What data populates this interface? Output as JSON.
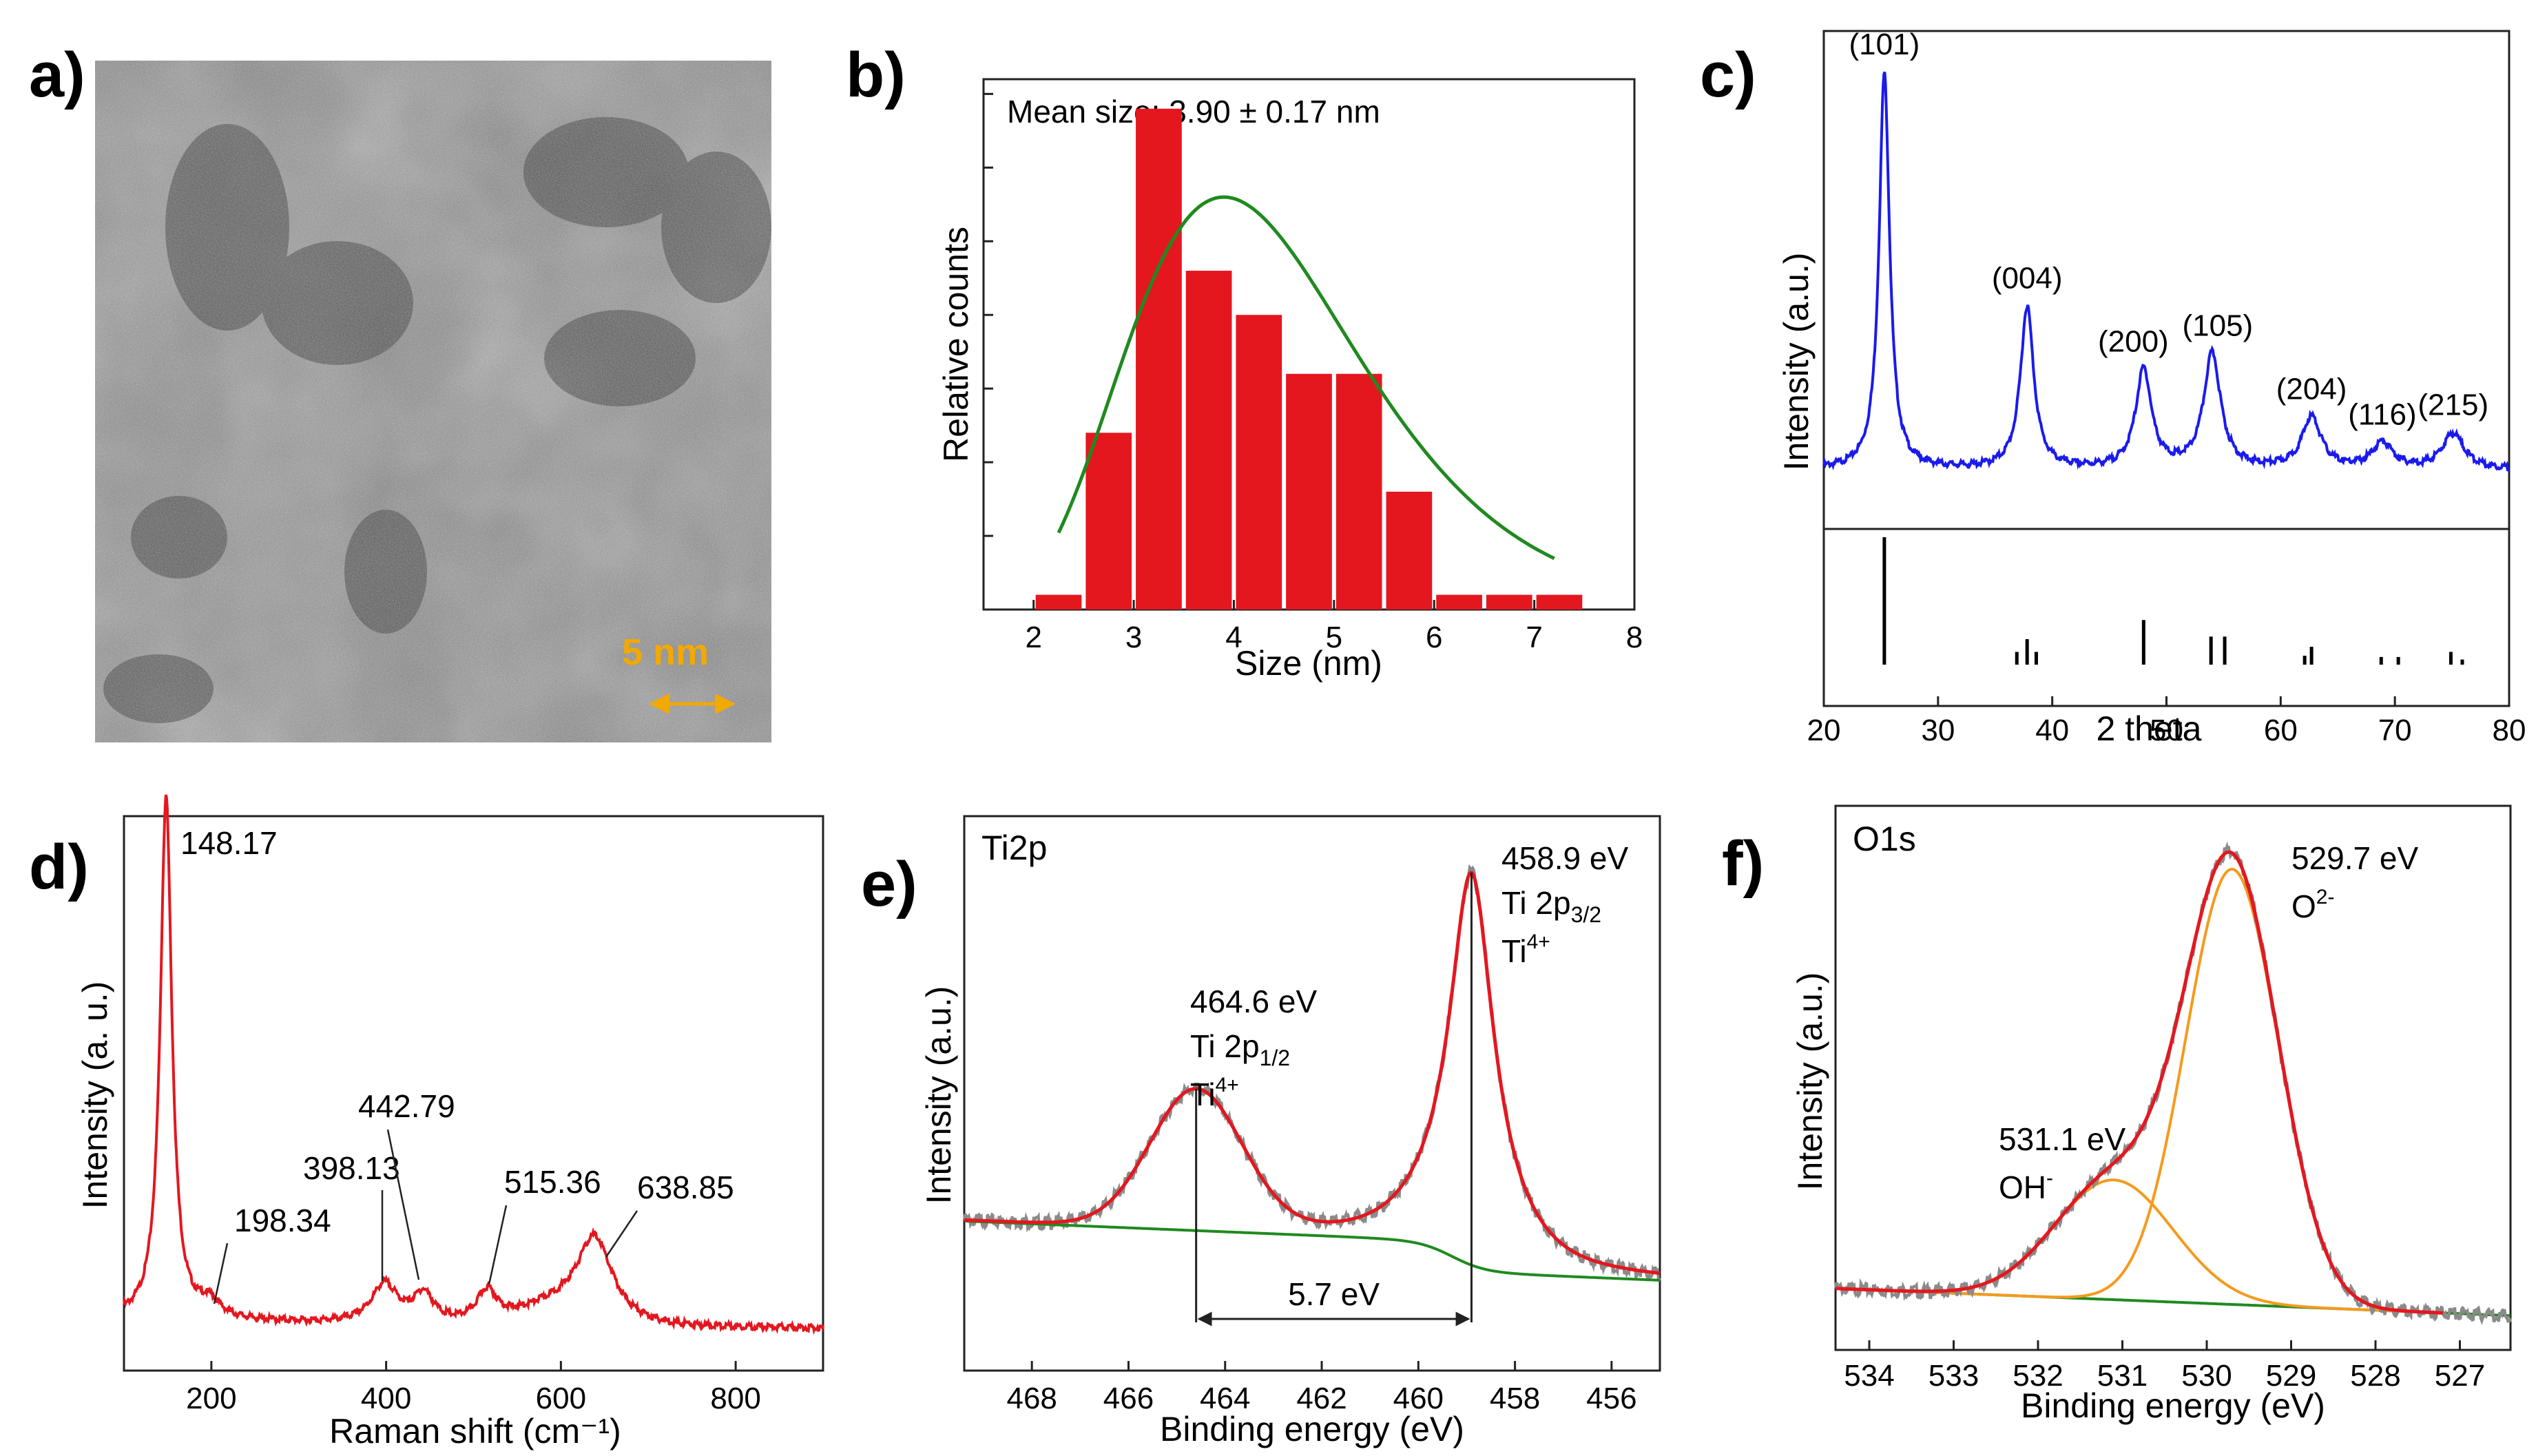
{
  "panel_labels": [
    "a)",
    "b)",
    "c)",
    "d)",
    "e)",
    "f)"
  ],
  "colors": {
    "red": "#e4171f",
    "blue": "#1a1aee",
    "green": "#1f8a1f",
    "orange": "#f59a1d",
    "gray": "#8a8a8a",
    "scale": "#f2a900"
  },
  "tem": {
    "scale_label": "5 nm"
  },
  "chart_data": [
    {
      "panel": "b",
      "type": "bar",
      "annotation": "Mean size: 3.90 ± 0.17 nm",
      "xlabel": "Size (nm)",
      "ylabel": "Relative counts",
      "xlim": [
        1.5,
        8
      ],
      "xticks": [
        2,
        3,
        4,
        5,
        6,
        7,
        8
      ],
      "ylim": [
        0,
        36
      ],
      "bins": [
        2.25,
        2.75,
        3.25,
        3.75,
        4.25,
        4.75,
        5.25,
        5.75,
        6.25,
        6.75,
        7.25
      ],
      "values": [
        1,
        12,
        34,
        23,
        20,
        16,
        16,
        8,
        1,
        1,
        1
      ],
      "bar_color": "#e4171f",
      "fit": {
        "type": "lognormal",
        "color": "#1f8a1f",
        "peak_x": 3.9,
        "peak_y": 28
      }
    },
    {
      "panel": "c",
      "type": "line",
      "xlabel": "2 theta",
      "ylabel": "Intensity (a.u.)",
      "xlim": [
        20,
        80
      ],
      "xticks": [
        20,
        30,
        40,
        50,
        60,
        70,
        80
      ],
      "peaks": [
        {
          "x": 25.3,
          "h": 1.0,
          "label": "(101)"
        },
        {
          "x": 37.8,
          "h": 0.41,
          "label": "(004)"
        },
        {
          "x": 48.0,
          "h": 0.25,
          "label": "(200)"
        },
        {
          "x": 54.0,
          "h": 0.29,
          "label": "(105)"
        },
        {
          "x": 62.7,
          "h": 0.13,
          "label": "(204)"
        },
        {
          "x": 68.9,
          "h": 0.065,
          "label": "(116)"
        },
        {
          "x": 75.1,
          "h": 0.09,
          "label": "(215)"
        }
      ],
      "reference_lines": [
        {
          "x": 25.3,
          "h": 1.0
        },
        {
          "x": 36.9,
          "h": 0.1
        },
        {
          "x": 37.8,
          "h": 0.2
        },
        {
          "x": 38.6,
          "h": 0.1
        },
        {
          "x": 48.0,
          "h": 0.35
        },
        {
          "x": 53.9,
          "h": 0.22
        },
        {
          "x": 55.1,
          "h": 0.22
        },
        {
          "x": 62.1,
          "h": 0.07
        },
        {
          "x": 62.7,
          "h": 0.14
        },
        {
          "x": 68.8,
          "h": 0.06
        },
        {
          "x": 70.3,
          "h": 0.06
        },
        {
          "x": 74.9,
          "h": 0.1
        },
        {
          "x": 75.9,
          "h": 0.04
        }
      ],
      "line_color": "#1a1aee"
    },
    {
      "panel": "d",
      "type": "line",
      "xlabel": "Raman shift (cm⁻¹)",
      "ylabel": "Intensity (a. u.)",
      "xlim": [
        100,
        900
      ],
      "xticks": [
        200,
        400,
        600,
        800
      ],
      "peaks": [
        {
          "x": 148.17,
          "label": "148.17"
        },
        {
          "x": 198.34,
          "label": "198.34"
        },
        {
          "x": 398.13,
          "label": "398.13"
        },
        {
          "x": 442.79,
          "label": "442.79"
        },
        {
          "x": 515.36,
          "label": "515.36"
        },
        {
          "x": 638.85,
          "label": "638.85"
        }
      ],
      "line_color": "#e4171f"
    },
    {
      "panel": "e",
      "type": "line",
      "title": "Ti2p",
      "xlabel": "Binding energy (eV)",
      "ylabel": "Intensity (a.u.)",
      "xlim": [
        469.4,
        455.0
      ],
      "x_reversed": true,
      "xticks": [
        468,
        466,
        464,
        462,
        460,
        458,
        456
      ],
      "peaks": [
        {
          "x": 464.6,
          "energy": "464.6 eV",
          "orbital": "Ti 2p",
          "sub": "1/2",
          "ion": "Ti",
          "charge": "4+"
        },
        {
          "x": 458.9,
          "energy": "458.9 eV",
          "orbital": "Ti 2p",
          "sub": "3/2",
          "ion": "Ti",
          "charge": "4+"
        }
      ],
      "splitting": "5.7 eV",
      "series": [
        {
          "name": "",
          "color": "#8a8a8a"
        },
        {
          "name": "",
          "color": "#e4171f"
        },
        {
          "name": "",
          "color": "#1f8a1f"
        }
      ]
    },
    {
      "panel": "f",
      "type": "line",
      "title": "O1s",
      "xlabel": "Binding energy (eV)",
      "ylabel": "Intensity (a.u.)",
      "xlim": [
        534.4,
        526.4
      ],
      "x_reversed": true,
      "xticks": [
        534,
        533,
        532,
        531,
        530,
        529,
        528,
        527
      ],
      "peaks": [
        {
          "x": 531.1,
          "energy": "531.1 eV",
          "species": "OH",
          "charge": "-"
        },
        {
          "x": 529.7,
          "energy": "529.7 eV",
          "species": "O",
          "charge": "2-"
        }
      ],
      "series": [
        {
          "name": "",
          "color": "#8a8a8a"
        },
        {
          "name": "",
          "color": "#e4171f"
        },
        {
          "name": "",
          "color": "#f59a1d"
        },
        {
          "name": "",
          "color": "#1f8a1f"
        }
      ]
    }
  ]
}
